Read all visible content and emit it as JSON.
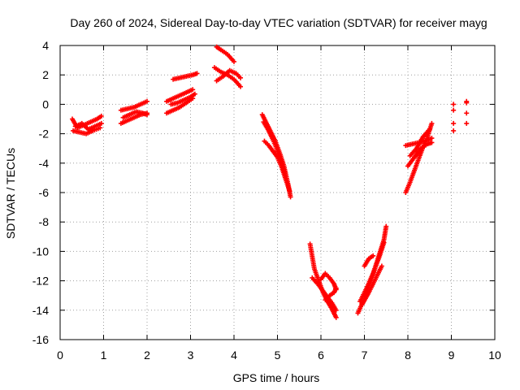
{
  "chart_data": {
    "type": "scatter",
    "title": "Day 260 of 2024, Sidereal Day-to-day VTEC variation (SDTVAR) for receiver mayg",
    "xlabel": "GPS time / hours",
    "ylabel": "SDTVAR / TECUs",
    "xlim": [
      0,
      10
    ],
    "ylim": [
      -16,
      4
    ],
    "xticks": [
      "0",
      "1",
      "2",
      "3",
      "4",
      "5",
      "6",
      "7",
      "8",
      "9",
      "10"
    ],
    "yticks": [
      "-16",
      "-14",
      "-12",
      "-10",
      "-8",
      "-6",
      "-4",
      "-2",
      "0",
      "2",
      "4"
    ],
    "grid": true,
    "marker": "plus",
    "color": "#ff0000",
    "series": [
      {
        "name": "SDTVAR",
        "segments": [
          {
            "x": [
              0.28,
              0.4,
              0.55,
              0.7,
              0.85,
              0.95
            ],
            "y": [
              -1.0,
              -1.6,
              -1.4,
              -1.2,
              -1.0,
              -0.8
            ]
          },
          {
            "x": [
              0.3,
              0.45,
              0.6,
              0.75,
              0.92
            ],
            "y": [
              -1.8,
              -1.9,
              -2.0,
              -1.8,
              -1.6
            ]
          },
          {
            "x": [
              0.35,
              0.5,
              0.65,
              0.8,
              0.95
            ],
            "y": [
              -1.5,
              -1.3,
              -1.7,
              -1.5,
              -1.3
            ]
          },
          {
            "x": [
              1.4,
              1.55,
              1.7,
              1.85,
              2.0
            ],
            "y": [
              -0.4,
              -0.3,
              -0.2,
              0.0,
              0.2
            ]
          },
          {
            "x": [
              1.4,
              1.55,
              1.7,
              1.85,
              2.0
            ],
            "y": [
              -1.3,
              -1.1,
              -0.9,
              -0.7,
              -0.6
            ]
          },
          {
            "x": [
              1.45,
              1.6,
              1.75,
              1.9,
              2.0
            ],
            "y": [
              -0.9,
              -0.7,
              -0.5,
              -0.6,
              -0.7
            ]
          },
          {
            "x": [
              2.45,
              2.6,
              2.75,
              2.9,
              3.05
            ],
            "y": [
              0.2,
              0.4,
              0.6,
              0.8,
              1.0
            ]
          },
          {
            "x": [
              2.45,
              2.6,
              2.75,
              2.9,
              3.05
            ],
            "y": [
              -0.6,
              -0.4,
              -0.2,
              0.1,
              0.4
            ]
          },
          {
            "x": [
              2.6,
              2.75,
              2.9,
              3.05,
              3.15
            ],
            "y": [
              1.7,
              1.8,
              1.9,
              2.0,
              2.1
            ]
          },
          {
            "x": [
              2.55,
              2.7,
              2.85,
              3.0,
              3.1
            ],
            "y": [
              0.0,
              0.1,
              0.3,
              0.5,
              0.7
            ]
          },
          {
            "x": [
              3.55,
              3.7,
              3.85,
              4.0,
              4.15
            ],
            "y": [
              2.5,
              2.2,
              2.0,
              1.7,
              1.2
            ]
          },
          {
            "x": [
              3.6,
              3.75,
              3.9,
              4.05,
              4.15
            ],
            "y": [
              1.6,
              1.9,
              2.3,
              2.1,
              1.8
            ]
          },
          {
            "x": [
              3.6,
              3.7,
              3.85,
              4.0
            ],
            "y": [
              3.9,
              3.7,
              3.4,
              2.9
            ]
          },
          {
            "x": [
              4.65,
              4.75,
              4.85,
              4.95,
              5.05,
              5.15,
              5.25,
              5.3
            ],
            "y": [
              -0.7,
              -1.3,
              -1.9,
              -2.5,
              -3.3,
              -4.2,
              -5.5,
              -6.3
            ]
          },
          {
            "x": [
              4.7,
              4.8,
              4.9,
              5.0,
              5.1,
              5.2,
              5.28
            ],
            "y": [
              -2.5,
              -2.8,
              -3.2,
              -3.6,
              -4.3,
              -5.2,
              -5.9
            ]
          },
          {
            "x": [
              4.68,
              4.78,
              4.88,
              4.98,
              5.08,
              5.18
            ],
            "y": [
              -1.2,
              -1.7,
              -2.3,
              -3.0,
              -3.8,
              -4.8
            ]
          },
          {
            "x": [
              5.75,
              5.85,
              5.95,
              6.05,
              6.15,
              6.25,
              6.35
            ],
            "y": [
              -9.5,
              -11.2,
              -12.0,
              -12.8,
              -13.4,
              -13.9,
              -14.5
            ]
          },
          {
            "x": [
              5.8,
              5.95,
              6.1,
              6.25,
              6.35
            ],
            "y": [
              -11.8,
              -12.3,
              -12.9,
              -13.5,
              -14.0
            ]
          },
          {
            "x": [
              6.0,
              6.1,
              6.2,
              6.3,
              6.35
            ],
            "y": [
              -11.9,
              -11.5,
              -11.8,
              -12.2,
              -12.6
            ]
          },
          {
            "x": [
              6.1,
              6.2,
              6.3,
              6.35
            ],
            "y": [
              -13.3,
              -13.0,
              -12.8,
              -12.5
            ]
          },
          {
            "x": [
              6.85,
              7.0,
              7.15,
              7.3,
              7.45,
              7.5
            ],
            "y": [
              -14.2,
              -13.2,
              -12.0,
              -10.6,
              -9.2,
              -8.3
            ]
          },
          {
            "x": [
              6.9,
              7.05,
              7.2,
              7.35,
              7.45
            ],
            "y": [
              -13.4,
              -12.5,
              -11.5,
              -10.3,
              -9.4
            ]
          },
          {
            "x": [
              7.0,
              7.1,
              7.2
            ],
            "y": [
              -11.0,
              -10.5,
              -10.3
            ]
          },
          {
            "x": [
              6.95,
              7.1,
              7.25,
              7.4
            ],
            "y": [
              -13.6,
              -12.8,
              -11.9,
              -11.0
            ]
          },
          {
            "x": [
              7.95,
              8.05,
              8.15,
              8.25,
              8.35,
              8.45,
              8.55
            ],
            "y": [
              -6.0,
              -5.3,
              -4.5,
              -3.7,
              -2.9,
              -2.2,
              -1.3
            ]
          },
          {
            "x": [
              7.95,
              8.1,
              8.25,
              8.4,
              8.55
            ],
            "y": [
              -2.8,
              -2.7,
              -2.6,
              -2.5,
              -2.3
            ]
          },
          {
            "x": [
              8.0,
              8.15,
              8.3,
              8.45,
              8.55
            ],
            "y": [
              -4.2,
              -3.6,
              -3.0,
              -2.7,
              -2.6
            ]
          },
          {
            "x": [
              8.05,
              8.2,
              8.35,
              8.5
            ],
            "y": [
              -3.5,
              -3.0,
              -2.2,
              -1.7
            ]
          },
          {
            "x": [
              9.05,
              9.05,
              9.05,
              9.05
            ],
            "y": [
              0.0,
              -0.4,
              -1.3,
              -1.8
            ]
          },
          {
            "x": [
              9.35,
              9.35,
              9.35,
              9.35
            ],
            "y": [
              0.2,
              0.1,
              -0.6,
              -1.3
            ]
          }
        ]
      }
    ]
  }
}
